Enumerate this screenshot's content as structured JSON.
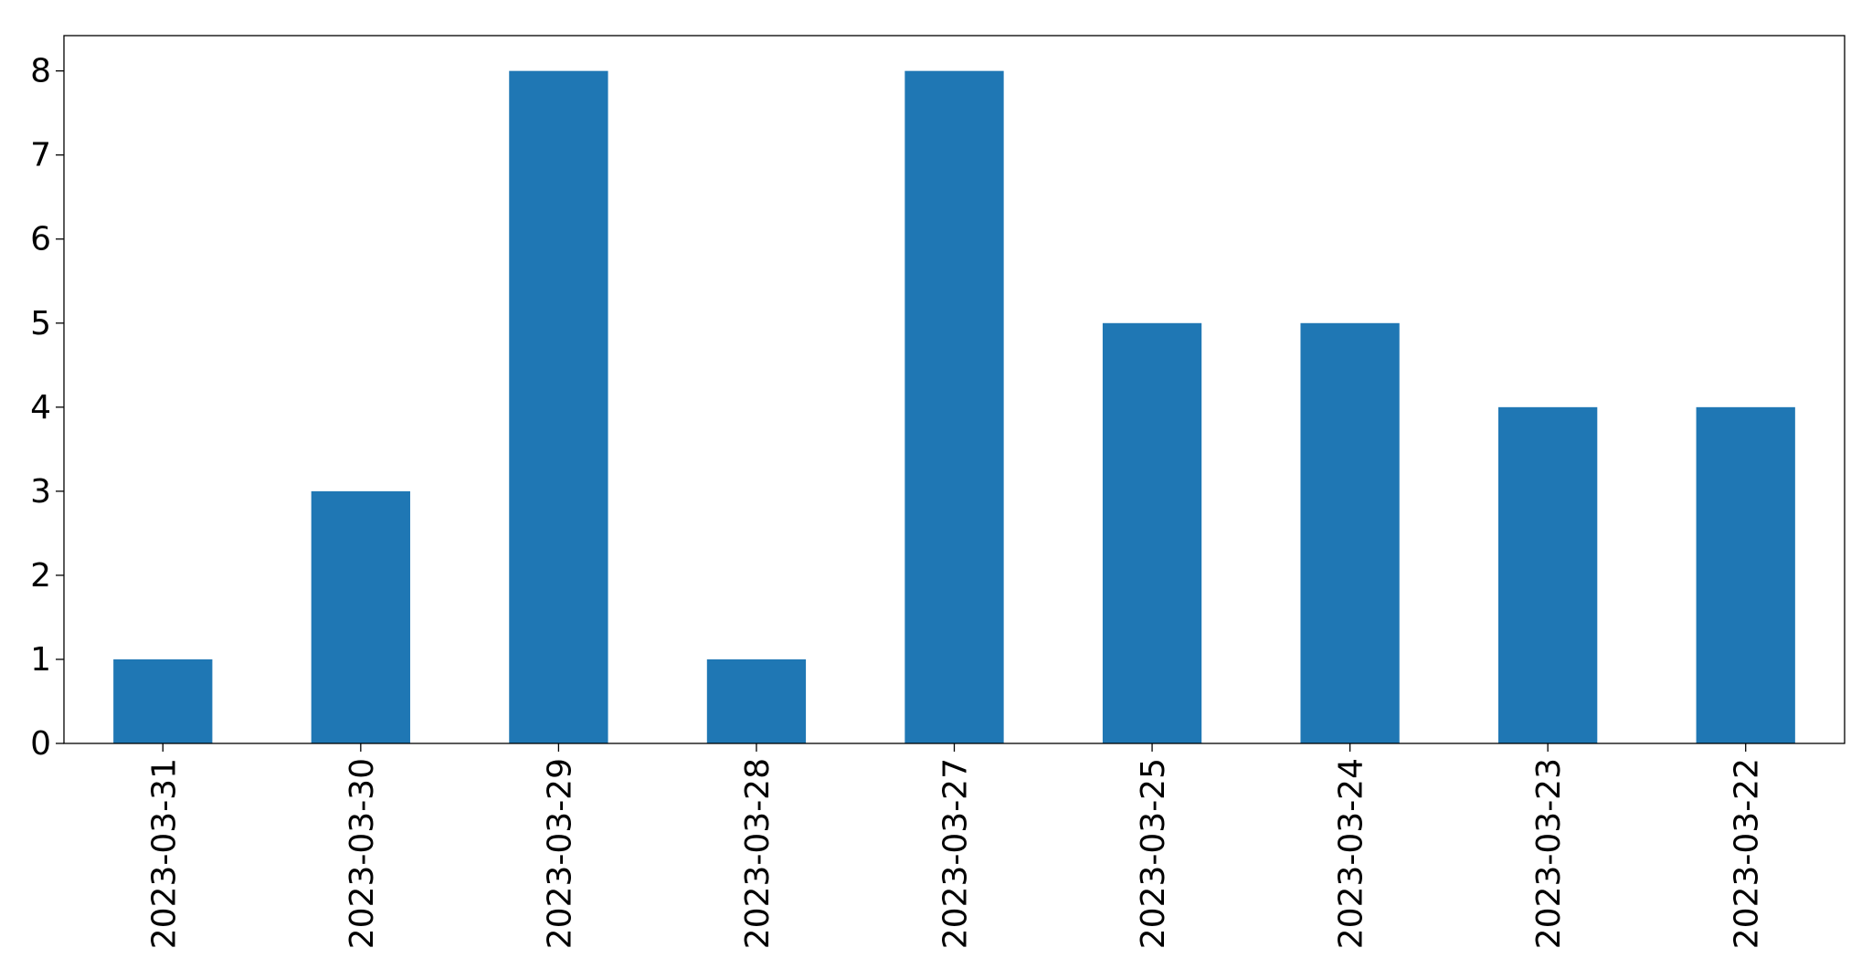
{
  "chart_data": {
    "type": "bar",
    "categories": [
      "2023-03-31",
      "2023-03-30",
      "2023-03-29",
      "2023-03-28",
      "2023-03-27",
      "2023-03-25",
      "2023-03-24",
      "2023-03-23",
      "2023-03-22"
    ],
    "values": [
      1,
      3,
      8,
      1,
      8,
      5,
      5,
      4,
      4
    ],
    "color": "#1f77b4",
    "ylim": [
      0,
      8.42
    ],
    "yticks": [
      0,
      1,
      2,
      3,
      4,
      5,
      6,
      7,
      8
    ],
    "grid": false
  }
}
